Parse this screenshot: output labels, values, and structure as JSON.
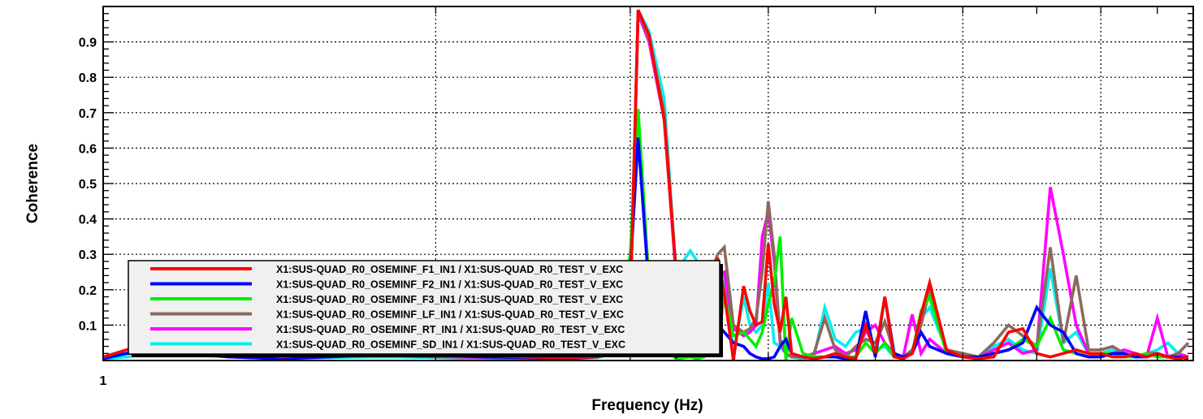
{
  "chart_data": {
    "type": "line",
    "title": "",
    "xlabel": "Frequency (Hz)",
    "ylabel": "Coherence",
    "x_scale": "log",
    "xlim": [
      1,
      9.7
    ],
    "ylim": [
      0,
      1
    ],
    "grid": true,
    "legend_position": "bottom-left",
    "x_ticks": [
      {
        "value": 1,
        "label": "1"
      }
    ],
    "y_ticks": [
      {
        "value": 0.1,
        "label": "0.1"
      },
      {
        "value": 0.2,
        "label": "0.2"
      },
      {
        "value": 0.3,
        "label": "0.3"
      },
      {
        "value": 0.4,
        "label": "0.4"
      },
      {
        "value": 0.5,
        "label": "0.5"
      },
      {
        "value": 0.6,
        "label": "0.6"
      },
      {
        "value": 0.7,
        "label": "0.7"
      },
      {
        "value": 0.8,
        "label": "0.8"
      },
      {
        "value": 0.9,
        "label": "0.9"
      }
    ],
    "x_gridlines": [
      1,
      2,
      3,
      4,
      6,
      8
    ],
    "series": [
      {
        "name": "X1:SUS-QUAD_R0_OSEMINF_F1_IN1 / X1:SUS-QUAD_R0_TEST_V_EXC",
        "color": "#ff0000",
        "x": [
          1.0,
          1.05,
          1.1,
          1.2,
          1.3,
          1.45,
          1.6,
          1.8,
          2.0,
          2.2,
          2.4,
          2.6,
          2.8,
          2.9,
          3.0,
          3.05,
          3.12,
          3.22,
          3.3,
          3.4,
          3.45,
          3.5,
          3.55,
          3.6,
          3.65,
          3.72,
          3.8,
          3.85,
          3.9,
          3.95,
          4.0,
          4.05,
          4.1,
          4.15,
          4.2,
          4.3,
          4.4,
          4.5,
          4.6,
          4.7,
          4.8,
          4.9,
          5.0,
          5.1,
          5.2,
          5.3,
          5.4,
          5.5,
          5.6,
          5.8,
          6.0,
          6.2,
          6.4,
          6.6,
          6.8,
          7.0,
          7.2,
          7.4,
          7.6,
          7.8,
          8.0,
          8.2,
          8.4,
          8.6,
          8.8,
          9.0,
          9.2,
          9.4,
          9.6
        ],
        "y": [
          0.01,
          0.03,
          0.05,
          0.04,
          0.03,
          0.01,
          0.02,
          0.03,
          0.02,
          0.015,
          0.01,
          0.008,
          0.01,
          0.02,
          0.15,
          0.99,
          0.92,
          0.68,
          0.25,
          0.12,
          0.1,
          0.15,
          0.22,
          0.29,
          0.19,
          0.0,
          0.21,
          0.14,
          0.1,
          0.11,
          0.33,
          0.16,
          0.08,
          0.18,
          0.02,
          0.01,
          0.005,
          0.01,
          0.02,
          0.01,
          0.005,
          0.1,
          0.02,
          0.18,
          0.01,
          0.005,
          0.02,
          0.13,
          0.22,
          0.03,
          0.01,
          0.005,
          0.01,
          0.08,
          0.09,
          0.02,
          0.01,
          0.02,
          0.03,
          0.02,
          0.02,
          0.01,
          0.01,
          0.02,
          0.01,
          0.02,
          0.01,
          0.005,
          0.01
        ]
      },
      {
        "name": "X1:SUS-QUAD_R0_OSEMINF_F2_IN1 / X1:SUS-QUAD_R0_TEST_V_EXC",
        "color": "#0000ff",
        "x": [
          1.0,
          1.05,
          1.1,
          1.2,
          1.3,
          1.45,
          1.6,
          1.8,
          2.0,
          2.2,
          2.4,
          2.6,
          2.8,
          2.9,
          3.0,
          3.05,
          3.12,
          3.22,
          3.3,
          3.4,
          3.45,
          3.5,
          3.55,
          3.6,
          3.65,
          3.72,
          3.8,
          3.85,
          3.9,
          3.95,
          4.0,
          4.05,
          4.1,
          4.15,
          4.2,
          4.3,
          4.4,
          4.5,
          4.6,
          4.7,
          4.8,
          4.9,
          5.0,
          5.1,
          5.2,
          5.3,
          5.4,
          5.5,
          5.6,
          5.8,
          6.0,
          6.2,
          6.4,
          6.6,
          6.8,
          7.0,
          7.2,
          7.4,
          7.6,
          7.8,
          8.0,
          8.2,
          8.4,
          8.6,
          8.8,
          9.0,
          9.2,
          9.4,
          9.6
        ],
        "y": [
          0.005,
          0.02,
          0.03,
          0.02,
          0.01,
          0.005,
          0.01,
          0.02,
          0.015,
          0.01,
          0.008,
          0.005,
          0.01,
          0.03,
          0.25,
          0.63,
          0.2,
          0.05,
          0.01,
          0.04,
          0.06,
          0.08,
          0.12,
          0.1,
          0.08,
          0.05,
          0.04,
          0.02,
          0.01,
          0.005,
          0.005,
          0.01,
          0.04,
          0.06,
          0.02,
          0.01,
          0.005,
          0.01,
          0.01,
          0.005,
          0.005,
          0.14,
          0.01,
          0.18,
          0.02,
          0.01,
          0.02,
          0.08,
          0.04,
          0.02,
          0.01,
          0.01,
          0.02,
          0.03,
          0.05,
          0.15,
          0.1,
          0.08,
          0.02,
          0.01,
          0.01,
          0.02,
          0.02,
          0.01,
          0.01,
          0.02,
          0.01,
          0.01,
          0.005
        ]
      },
      {
        "name": "X1:SUS-QUAD_R0_OSEMINF_F3_IN1 / X1:SUS-QUAD_R0_TEST_V_EXC",
        "color": "#00ee00",
        "x": [
          1.0,
          1.05,
          1.1,
          1.2,
          1.3,
          1.45,
          1.6,
          1.8,
          2.0,
          2.2,
          2.4,
          2.6,
          2.8,
          2.9,
          3.0,
          3.05,
          3.12,
          3.22,
          3.3,
          3.4,
          3.45,
          3.5,
          3.55,
          3.6,
          3.65,
          3.72,
          3.8,
          3.85,
          3.9,
          3.95,
          4.0,
          4.05,
          4.1,
          4.15,
          4.2,
          4.3,
          4.4,
          4.5,
          4.6,
          4.7,
          4.8,
          4.9,
          5.0,
          5.1,
          5.2,
          5.3,
          5.4,
          5.5,
          5.6,
          5.8,
          6.0,
          6.2,
          6.4,
          6.6,
          6.8,
          7.0,
          7.2,
          7.4,
          7.6,
          7.8,
          8.0,
          8.2,
          8.4,
          8.6,
          8.8,
          9.0,
          9.2,
          9.4,
          9.6
        ],
        "y": [
          0.01,
          0.02,
          0.04,
          0.03,
          0.02,
          0.01,
          0.015,
          0.02,
          0.015,
          0.01,
          0.008,
          0.006,
          0.01,
          0.03,
          0.3,
          0.71,
          0.22,
          0.05,
          0.005,
          0.01,
          0.005,
          0.01,
          0.18,
          0.04,
          0.19,
          0.07,
          0.08,
          0.06,
          0.04,
          0.08,
          0.16,
          0.22,
          0.35,
          0.0,
          0.12,
          0.02,
          0.01,
          0.01,
          0.02,
          0.01,
          0.01,
          0.05,
          0.02,
          0.05,
          0.01,
          0.01,
          0.02,
          0.14,
          0.18,
          0.02,
          0.01,
          0.01,
          0.02,
          0.03,
          0.06,
          0.04,
          0.12,
          0.03,
          0.02,
          0.01,
          0.02,
          0.02,
          0.01,
          0.01,
          0.02,
          0.01,
          0.01,
          0.005,
          0.01
        ]
      },
      {
        "name": "X1:SUS-QUAD_R0_OSEMINF_LF_IN1 / X1:SUS-QUAD_R0_TEST_V_EXC",
        "color": "#8b6a5c",
        "x": [
          1.0,
          1.05,
          1.1,
          1.2,
          1.3,
          1.45,
          1.6,
          1.8,
          2.0,
          2.2,
          2.4,
          2.6,
          2.8,
          2.9,
          3.0,
          3.05,
          3.12,
          3.22,
          3.3,
          3.4,
          3.45,
          3.5,
          3.55,
          3.6,
          3.65,
          3.72,
          3.8,
          3.85,
          3.9,
          3.95,
          4.0,
          4.05,
          4.1,
          4.15,
          4.2,
          4.3,
          4.4,
          4.5,
          4.6,
          4.7,
          4.8,
          4.9,
          5.0,
          5.1,
          5.2,
          5.3,
          5.4,
          5.5,
          5.6,
          5.8,
          6.0,
          6.2,
          6.4,
          6.6,
          6.8,
          7.0,
          7.2,
          7.4,
          7.6,
          7.8,
          8.0,
          8.2,
          8.4,
          8.6,
          8.8,
          9.0,
          9.2,
          9.4,
          9.6
        ],
        "y": [
          0.01,
          0.02,
          0.03,
          0.02,
          0.015,
          0.01,
          0.01,
          0.015,
          0.01,
          0.01,
          0.005,
          0.005,
          0.01,
          0.03,
          0.16,
          0.99,
          0.91,
          0.7,
          0.26,
          0.12,
          0.15,
          0.21,
          0.25,
          0.3,
          0.32,
          0.1,
          0.08,
          0.09,
          0.12,
          0.25,
          0.45,
          0.3,
          0.06,
          0.02,
          0.01,
          0.01,
          0.02,
          0.12,
          0.03,
          0.01,
          0.04,
          0.06,
          0.05,
          0.11,
          0.02,
          0.01,
          0.03,
          0.1,
          0.2,
          0.03,
          0.02,
          0.01,
          0.05,
          0.1,
          0.07,
          0.04,
          0.32,
          0.05,
          0.24,
          0.03,
          0.03,
          0.04,
          0.02,
          0.01,
          0.02,
          0.02,
          0.01,
          0.02,
          0.05
        ]
      },
      {
        "name": "X1:SUS-QUAD_R0_OSEMINF_RT_IN1 / X1:SUS-QUAD_R0_TEST_V_EXC",
        "color": "#ff00ff",
        "x": [
          1.0,
          1.05,
          1.1,
          1.2,
          1.3,
          1.45,
          1.6,
          1.8,
          2.0,
          2.2,
          2.4,
          2.6,
          2.8,
          2.9,
          3.0,
          3.05,
          3.12,
          3.22,
          3.3,
          3.4,
          3.45,
          3.5,
          3.55,
          3.6,
          3.65,
          3.72,
          3.8,
          3.85,
          3.9,
          3.95,
          4.0,
          4.05,
          4.1,
          4.15,
          4.2,
          4.3,
          4.4,
          4.5,
          4.6,
          4.7,
          4.8,
          4.9,
          5.0,
          5.1,
          5.2,
          5.3,
          5.4,
          5.5,
          5.6,
          5.8,
          6.0,
          6.2,
          6.4,
          6.6,
          6.8,
          7.0,
          7.2,
          7.4,
          7.6,
          7.8,
          8.0,
          8.2,
          8.4,
          8.6,
          8.8,
          9.0,
          9.2,
          9.4,
          9.6
        ],
        "y": [
          0.01,
          0.02,
          0.03,
          0.02,
          0.01,
          0.005,
          0.01,
          0.015,
          0.01,
          0.008,
          0.005,
          0.005,
          0.01,
          0.02,
          0.15,
          0.98,
          0.9,
          0.68,
          0.24,
          0.1,
          0.12,
          0.18,
          0.23,
          0.24,
          0.25,
          0.09,
          0.07,
          0.08,
          0.1,
          0.35,
          0.42,
          0.28,
          0.05,
          0.02,
          0.01,
          0.01,
          0.02,
          0.03,
          0.04,
          0.02,
          0.03,
          0.08,
          0.1,
          0.05,
          0.02,
          0.01,
          0.13,
          0.02,
          0.06,
          0.02,
          0.01,
          0.01,
          0.03,
          0.05,
          0.02,
          0.03,
          0.49,
          0.3,
          0.1,
          0.02,
          0.01,
          0.02,
          0.03,
          0.02,
          0.01,
          0.12,
          0.01,
          0.02,
          0.01
        ]
      },
      {
        "name": "X1:SUS-QUAD_R0_OSEMINF_SD_IN1 / X1:SUS-QUAD_R0_TEST_V_EXC",
        "color": "#00eeee",
        "x": [
          1.0,
          1.05,
          1.1,
          1.2,
          1.3,
          1.45,
          1.6,
          1.8,
          2.0,
          2.2,
          2.4,
          2.6,
          2.8,
          2.9,
          3.0,
          3.05,
          3.12,
          3.22,
          3.3,
          3.4,
          3.45,
          3.5,
          3.55,
          3.6,
          3.65,
          3.72,
          3.8,
          3.85,
          3.9,
          3.95,
          4.0,
          4.05,
          4.1,
          4.15,
          4.2,
          4.3,
          4.4,
          4.5,
          4.6,
          4.7,
          4.8,
          4.9,
          5.0,
          5.1,
          5.2,
          5.3,
          5.4,
          5.5,
          5.6,
          5.8,
          6.0,
          6.2,
          6.4,
          6.6,
          6.8,
          7.0,
          7.2,
          7.4,
          7.6,
          7.8,
          8.0,
          8.2,
          8.4,
          8.6,
          8.8,
          9.0,
          9.2,
          9.4,
          9.6
        ],
        "y": [
          0.005,
          0.01,
          0.02,
          0.015,
          0.01,
          0.005,
          0.008,
          0.01,
          0.008,
          0.005,
          0.004,
          0.004,
          0.008,
          0.02,
          0.18,
          0.99,
          0.93,
          0.74,
          0.25,
          0.31,
          0.28,
          0.26,
          0.28,
          0.27,
          0.24,
          0.02,
          0.18,
          0.1,
          0.08,
          0.1,
          0.22,
          0.05,
          0.04,
          0.02,
          0.01,
          0.005,
          0.01,
          0.15,
          0.06,
          0.04,
          0.08,
          0.09,
          0.03,
          0.04,
          0.01,
          0.01,
          0.02,
          0.12,
          0.15,
          0.03,
          0.02,
          0.01,
          0.04,
          0.06,
          0.03,
          0.02,
          0.26,
          0.05,
          0.08,
          0.02,
          0.02,
          0.03,
          0.02,
          0.01,
          0.02,
          0.03,
          0.05,
          0.02,
          0.01
        ]
      }
    ]
  }
}
